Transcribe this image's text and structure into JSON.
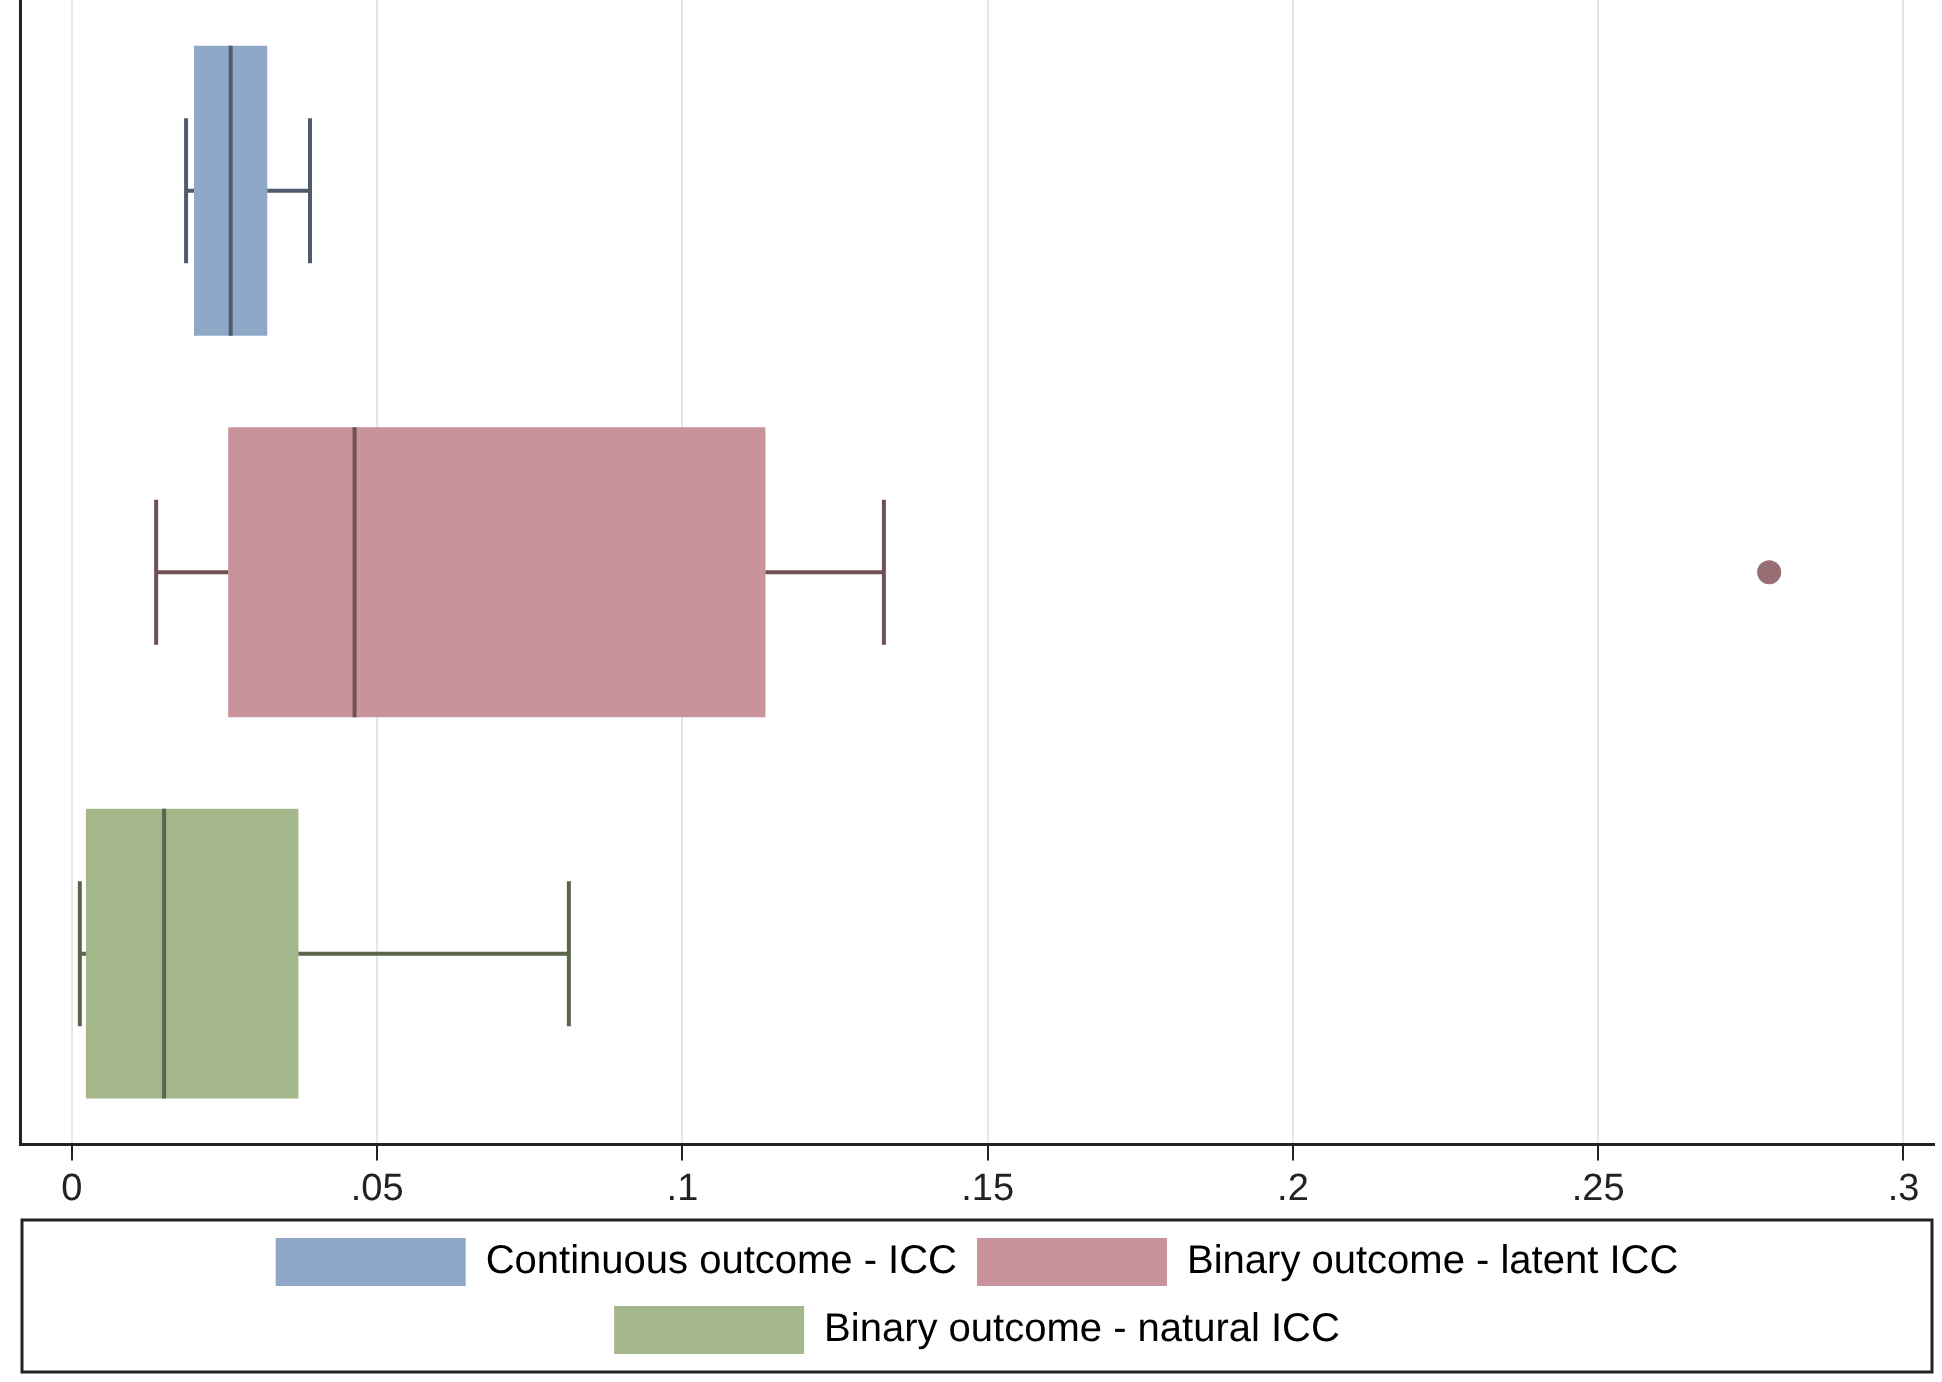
{
  "chart_data": {
    "type": "box",
    "orientation": "horizontal",
    "categories": [
      null,
      null,
      null
    ],
    "series": [
      {
        "name": "Continuous outcome - ICC",
        "color": "#8fa8c8",
        "boxes": [
          {
            "low": 0.0187,
            "q1": 0.02,
            "median": 0.026,
            "q3": 0.032,
            "high": 0.039
          },
          null,
          null
        ]
      },
      {
        "name": "Binary outcome - latent ICC",
        "color": "#c8939a",
        "boxes": [
          null,
          {
            "low": 0.0138,
            "q1": 0.0256,
            "median": 0.0463,
            "q3": 0.1136,
            "high": 0.133,
            "outliers": [
              0.278
            ]
          },
          null
        ]
      },
      {
        "name": "Binary outcome - natural ICC",
        "color": "#a3b78a",
        "boxes": [
          null,
          null,
          {
            "low": 0.0013,
            "q1": 0.0023,
            "median": 0.0151,
            "q3": 0.0371,
            "high": 0.0814
          }
        ]
      }
    ],
    "xlim": [
      -0.0085,
      0.305
    ],
    "xticks": [
      0,
      {
        "value": 0.05,
        "label": ".05"
      },
      {
        "value": 0.1,
        "label": ".1"
      },
      {
        "value": 0.15,
        "label": ".15"
      },
      {
        "value": 0.2,
        "label": ".2"
      },
      {
        "value": 0.25,
        "label": ".25"
      },
      {
        "value": 0.3,
        "label": ".3"
      }
    ],
    "grid": "x",
    "legend": "bottom",
    "tick_labels": "x"
  }
}
